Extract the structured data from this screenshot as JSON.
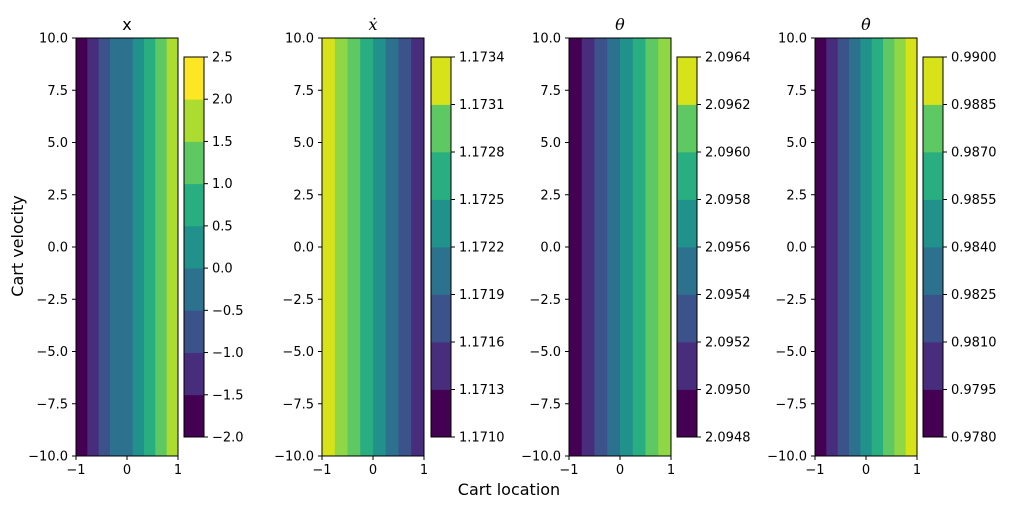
{
  "figure": {
    "xlabel": "Cart location",
    "ylabel": "Cart velocity"
  },
  "colormap": [
    "#440154",
    "#472d7b",
    "#3b528b",
    "#2c728e",
    "#21918c",
    "#28ae80",
    "#5ec962",
    "#addc30",
    "#fde725"
  ],
  "chart_data": [
    {
      "type": "heatmap",
      "title": "x",
      "title_style": "plain",
      "x_ticks": [
        "−1",
        "0",
        "1"
      ],
      "y_ticks": [
        "10.0",
        "7.5",
        "5.0",
        "2.5",
        "0.0",
        "−2.5",
        "−5.0",
        "−7.5",
        "−10.0"
      ],
      "xlim": [
        -1,
        1
      ],
      "ylim": [
        -10,
        10
      ],
      "vertical_bands": [
        "#440154",
        "#472d7b",
        "#3b528b",
        "#2c728e",
        "#2c728e",
        "#21918c",
        "#28ae80",
        "#5ec962",
        "#addc30"
      ],
      "colorbar": {
        "levels": [
          -2.0,
          -1.5,
          -1.0,
          -0.5,
          0.0,
          0.5,
          1.0,
          1.5,
          2.0,
          2.5
        ],
        "tick_labels": [
          "2.5",
          "2.0",
          "1.5",
          "1.0",
          "0.5",
          "0.0",
          "−0.5",
          "−1.0",
          "−1.5",
          "−2.0"
        ],
        "top_aligned": true,
        "colors": [
          "#440154",
          "#472d7b",
          "#3b528b",
          "#2c728e",
          "#21918c",
          "#28ae80",
          "#5ec962",
          "#addc30",
          "#fde725"
        ]
      }
    },
    {
      "type": "heatmap",
      "title": "ẋ",
      "title_style": "math",
      "x_ticks": [
        "−1",
        "0",
        "1"
      ],
      "y_ticks": [
        "10.0",
        "7.5",
        "5.0",
        "2.5",
        "0.0",
        "−2.5",
        "−5.0",
        "−7.5",
        "−10.0"
      ],
      "xlim": [
        -1,
        1
      ],
      "ylim": [
        -10,
        10
      ],
      "vertical_bands": [
        "#d8e219",
        "#8fd744",
        "#5ec962",
        "#28ae80",
        "#21918c",
        "#2c728e",
        "#3b528b",
        "#472d7b"
      ],
      "colorbar": {
        "levels": [
          1.171,
          1.1713,
          1.1716,
          1.1719,
          1.1722,
          1.1725,
          1.1728,
          1.1731,
          1.1734
        ],
        "tick_labels": [
          "1.1734",
          "1.1731",
          "1.1728",
          "1.1725",
          "1.1722",
          "1.1719",
          "1.1716",
          "1.1713",
          "1.1710"
        ],
        "top_aligned": false,
        "colors": [
          "#440154",
          "#472d7b",
          "#3b528b",
          "#2c728e",
          "#21918c",
          "#28ae80",
          "#5ec962",
          "#d8e219"
        ]
      }
    },
    {
      "type": "heatmap",
      "title": "θ",
      "title_style": "math",
      "x_ticks": [
        "−1",
        "0",
        "1"
      ],
      "y_ticks": [
        "10.0",
        "7.5",
        "5.0",
        "2.5",
        "0.0",
        "−2.5",
        "−5.0",
        "−7.5",
        "−10.0"
      ],
      "xlim": [
        -1,
        1
      ],
      "ylim": [
        -10,
        10
      ],
      "vertical_bands": [
        "#440154",
        "#472d7b",
        "#3b528b",
        "#2c728e",
        "#21918c",
        "#28ae80",
        "#5ec962",
        "#8fd744"
      ],
      "colorbar": {
        "levels": [
          2.0948,
          2.095,
          2.0952,
          2.0954,
          2.0956,
          2.0958,
          2.096,
          2.0962,
          2.0964
        ],
        "tick_labels": [
          "2.0964",
          "2.0962",
          "2.0960",
          "2.0958",
          "2.0956",
          "2.0954",
          "2.0952",
          "2.0950",
          "2.0948"
        ],
        "top_aligned": false,
        "colors": [
          "#440154",
          "#472d7b",
          "#3b528b",
          "#2c728e",
          "#21918c",
          "#28ae80",
          "#5ec962",
          "#d8e219"
        ]
      }
    },
    {
      "type": "heatmap",
      "title": "θ̇",
      "title_style": "math",
      "x_ticks": [
        "−1",
        "0",
        "1"
      ],
      "y_ticks": [
        "10.0",
        "7.5",
        "5.0",
        "2.5",
        "0.0",
        "−2.5",
        "−5.0",
        "−7.5",
        "−10.0"
      ],
      "xlim": [
        -1,
        1
      ],
      "ylim": [
        -10,
        10
      ],
      "vertical_bands": [
        "#440154",
        "#472d7b",
        "#3b528b",
        "#2c728e",
        "#21918c",
        "#28ae80",
        "#5ec962",
        "#8fd744",
        "#d8e219"
      ],
      "colorbar": {
        "levels": [
          0.978,
          0.9795,
          0.981,
          0.9825,
          0.984,
          0.9855,
          0.987,
          0.9885,
          0.99
        ],
        "tick_labels": [
          "0.9900",
          "0.9885",
          "0.9870",
          "0.9855",
          "0.9840",
          "0.9825",
          "0.9810",
          "0.9795",
          "0.9780"
        ],
        "top_aligned": false,
        "colors": [
          "#440154",
          "#472d7b",
          "#3b528b",
          "#2c728e",
          "#21918c",
          "#28ae80",
          "#5ec962",
          "#d8e219"
        ]
      }
    }
  ]
}
